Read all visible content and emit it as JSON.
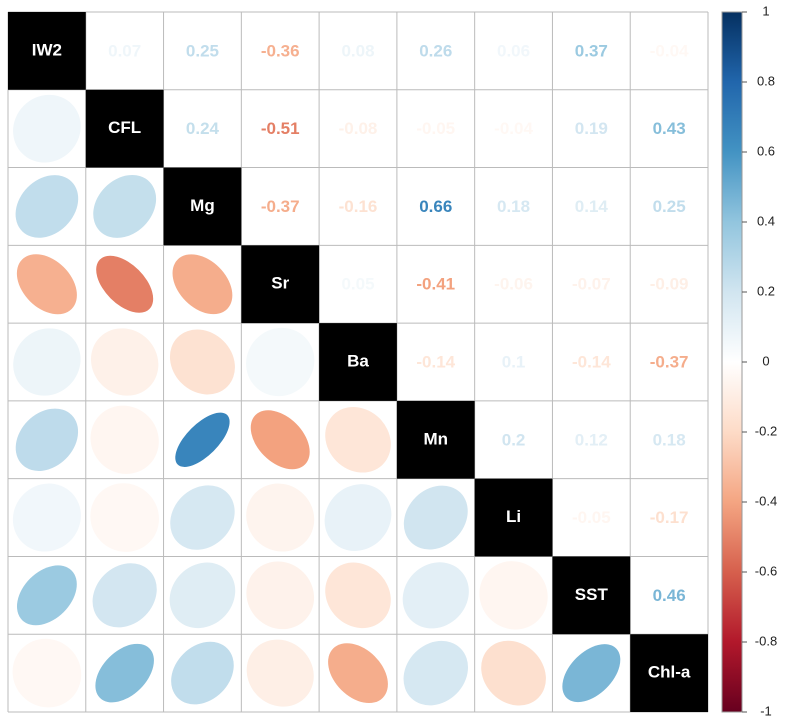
{
  "chart_data": {
    "type": "corrplot",
    "variables": [
      "IW2",
      "CFL",
      "Mg",
      "Sr",
      "Ba",
      "Mn",
      "Li",
      "SST",
      "Chl-a"
    ],
    "values": [
      [
        0.07,
        0.25,
        -0.36,
        0.08,
        0.26,
        0.06,
        0.37,
        -0.04
      ],
      [
        0.24,
        -0.51,
        -0.08,
        -0.05,
        -0.04,
        0.19,
        0.43
      ],
      [
        -0.37,
        -0.16,
        0.66,
        0.18,
        0.14,
        0.25
      ],
      [
        0.05,
        -0.41,
        -0.06,
        -0.07,
        -0.09
      ],
      [
        -0.14,
        0.1,
        -0.14,
        -0.37
      ],
      [
        0.2,
        0.12,
        0.18
      ],
      [
        -0.05,
        -0.17
      ],
      [
        0.46
      ]
    ],
    "colors": [
      "#67001F",
      "#B2182B",
      "#D6604D",
      "#F4A582",
      "#FDDBC7",
      "#FFFFFF",
      "#D1E5F0",
      "#92C5DE",
      "#4393C3",
      "#2166AC",
      "#053061"
    ],
    "clim": [
      -1,
      1
    ],
    "cticks": [
      -1,
      -0.8,
      -0.6,
      -0.4,
      -0.2,
      0,
      0.2,
      0.4,
      0.6,
      0.8,
      1
    ]
  }
}
